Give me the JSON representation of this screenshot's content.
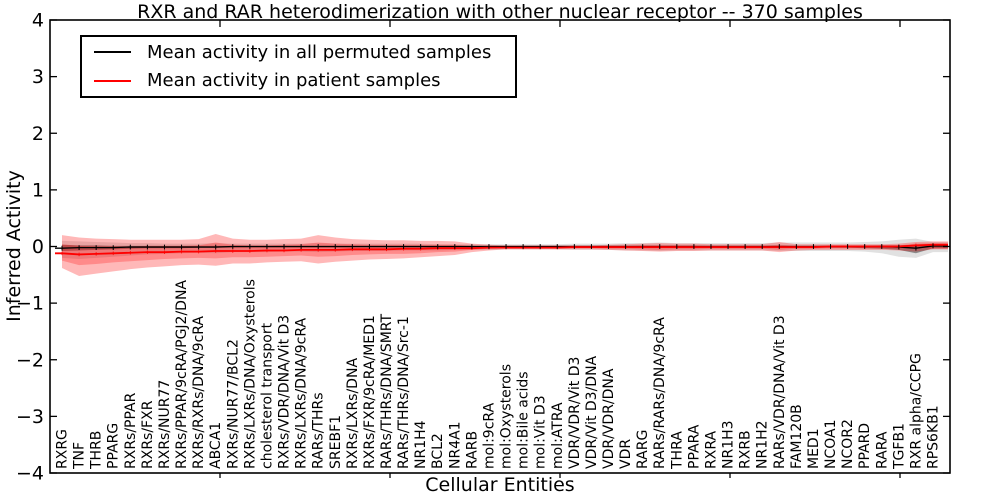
{
  "title": "RXR and RAR heterodimerization with other nuclear receptor -- 370 samples",
  "legend": {
    "items": [
      {
        "label": "Mean activity in all permuted samples",
        "color": "#000000"
      },
      {
        "label": "Mean activity in patient samples",
        "color": "#ff0000"
      }
    ]
  },
  "colors": {
    "patient_line": "#ff0000",
    "permuted_line": "#000000",
    "patient_band": "#ff0000",
    "permuted_band": "#777777",
    "frame": "#000000"
  },
  "chart_data": {
    "type": "line",
    "title": "RXR and RAR heterodimerization with other nuclear receptor -- 370 samples",
    "xlabel": "Cellular Entities",
    "ylabel": "Inferred Activity",
    "ylim": [
      -4,
      4
    ],
    "yticks": [
      4,
      3,
      2,
      1,
      0,
      -1,
      -2,
      -3,
      -4
    ],
    "grid": false,
    "legend_position": "upper left",
    "entities": [
      "RXRG",
      "TNF",
      "THRB",
      "PPARG",
      "RXRs/PPAR",
      "RXRs/FXR",
      "RXRs/NUR77",
      "RXRs/PPAR/9cRA/PGJ2/DNA",
      "RXRs/RXRs/DNA/9cRA",
      "ABCA1",
      "RXRs/NUR77/BCL2",
      "RXRs/LXRs/DNA/Oxysterols",
      "cholesterol transport",
      "RXRs/VDR/DNA/Vit D3",
      "RXRs/LXRs/DNA/9cRA",
      "RARs/THRs",
      "SREBF1",
      "RXRs/LXRs/DNA",
      "RXRs/FXR/9cRA/MED1",
      "RARs/THRs/DNA/SMRT",
      "RARs/THRs/DNA/Src-1",
      "NR1H4",
      "BCL2",
      "NR4A1",
      "RARB",
      "mol:9cRA",
      "mol:Oxysterols",
      "mol:Bile acids",
      "mol:Vit D3",
      "mol:ATRA",
      "VDR/VDR/Vit D3",
      "VDR/Vit D3/DNA",
      "VDR/VDR/DNA",
      "VDR",
      "RARG",
      "RARs/RARs/DNA/9cRA",
      "THRA",
      "PPARA",
      "RXRA",
      "NR1H3",
      "RXRB",
      "NR1H2",
      "RARs/VDR/DNA/Vit D3",
      "FAM120B",
      "MED1",
      "NCOA1",
      "NCOR2",
      "PPARD",
      "RARA",
      "TGFB1",
      "RXR alpha/CCPG",
      "RPS6KB1"
    ],
    "series": [
      {
        "name": "Mean activity in all permuted samples",
        "color": "#000000",
        "band_color": "#777777",
        "mean": [
          -0.03,
          -0.02,
          -0.02,
          -0.02,
          -0.01,
          -0.01,
          -0.01,
          -0.01,
          -0.01,
          -0.01,
          0.0,
          0.0,
          0.0,
          0.0,
          0.0,
          0.0,
          0.0,
          0.0,
          0.0,
          0.0,
          0.0,
          0.0,
          0.0,
          0.0,
          0.0,
          0.0,
          0.0,
          0.0,
          0.0,
          0.0,
          0.0,
          0.0,
          0.0,
          0.0,
          0.0,
          0.0,
          0.0,
          0.0,
          0.0,
          0.0,
          0.0,
          0.0,
          0.0,
          0.0,
          0.0,
          0.0,
          0.0,
          0.0,
          0.0,
          -0.01,
          -0.03,
          0.01
        ],
        "band_outer_upper": [
          0.1,
          0.09,
          0.08,
          0.07,
          0.06,
          0.06,
          0.05,
          0.05,
          0.05,
          0.06,
          0.05,
          0.05,
          0.05,
          0.05,
          0.05,
          0.06,
          0.05,
          0.05,
          0.05,
          0.05,
          0.05,
          0.05,
          0.04,
          0.04,
          0.04,
          0.04,
          0.04,
          0.04,
          0.04,
          0.04,
          0.05,
          0.05,
          0.05,
          0.06,
          0.06,
          0.07,
          0.06,
          0.06,
          0.06,
          0.06,
          0.06,
          0.06,
          0.07,
          0.07,
          0.07,
          0.07,
          0.07,
          0.08,
          0.09,
          0.12,
          0.14,
          0.08
        ],
        "band_outer_lower": [
          -0.2,
          -0.22,
          -0.2,
          -0.18,
          -0.16,
          -0.14,
          -0.13,
          -0.12,
          -0.11,
          -0.12,
          -0.1,
          -0.1,
          -0.1,
          -0.09,
          -0.09,
          -0.1,
          -0.09,
          -0.08,
          -0.08,
          -0.08,
          -0.07,
          -0.07,
          -0.07,
          -0.06,
          -0.06,
          -0.06,
          -0.05,
          -0.05,
          -0.05,
          -0.05,
          -0.06,
          -0.06,
          -0.06,
          -0.07,
          -0.07,
          -0.08,
          -0.07,
          -0.07,
          -0.07,
          -0.07,
          -0.07,
          -0.07,
          -0.08,
          -0.08,
          -0.08,
          -0.08,
          -0.08,
          -0.09,
          -0.12,
          -0.18,
          -0.2,
          -0.1
        ],
        "band_inner_upper": [
          0.03,
          0.02,
          0.02,
          0.01,
          0.01,
          0.01,
          0.01,
          0.01,
          0.01,
          0.01,
          0.01,
          0.01,
          0.01,
          0.01,
          0.01,
          0.01,
          0.01,
          0.01,
          0.01,
          0.01,
          0.01,
          0.01,
          0.01,
          0.01,
          0.01,
          0.01,
          0.01,
          0.01,
          0.01,
          0.01,
          0.01,
          0.01,
          0.01,
          0.01,
          0.01,
          0.01,
          0.01,
          0.01,
          0.01,
          0.01,
          0.01,
          0.01,
          0.01,
          0.01,
          0.01,
          0.01,
          0.01,
          0.01,
          0.02,
          0.02,
          0.03,
          0.02
        ],
        "band_inner_lower": [
          -0.08,
          -0.07,
          -0.06,
          -0.05,
          -0.04,
          -0.03,
          -0.03,
          -0.03,
          -0.02,
          -0.02,
          -0.02,
          -0.02,
          -0.02,
          -0.02,
          -0.02,
          -0.02,
          -0.02,
          -0.02,
          -0.02,
          -0.02,
          -0.02,
          -0.02,
          -0.02,
          -0.02,
          -0.02,
          -0.02,
          -0.02,
          -0.02,
          -0.02,
          -0.02,
          -0.02,
          -0.02,
          -0.02,
          -0.02,
          -0.02,
          -0.02,
          -0.02,
          -0.02,
          -0.02,
          -0.02,
          -0.02,
          -0.02,
          -0.02,
          -0.02,
          -0.02,
          -0.02,
          -0.02,
          -0.03,
          -0.04,
          -0.06,
          -0.12,
          -0.03
        ]
      },
      {
        "name": "Mean activity in patient samples",
        "color": "#ff0000",
        "band_color": "#ff0000",
        "mean": [
          -0.12,
          -0.14,
          -0.13,
          -0.12,
          -0.11,
          -0.1,
          -0.1,
          -0.09,
          -0.09,
          -0.08,
          -0.08,
          -0.08,
          -0.07,
          -0.07,
          -0.06,
          -0.06,
          -0.06,
          -0.05,
          -0.05,
          -0.05,
          -0.04,
          -0.04,
          -0.03,
          -0.03,
          -0.03,
          -0.02,
          -0.02,
          -0.02,
          -0.02,
          -0.02,
          -0.01,
          -0.01,
          -0.01,
          -0.01,
          -0.01,
          -0.01,
          -0.01,
          -0.01,
          -0.01,
          -0.01,
          -0.01,
          -0.01,
          -0.01,
          -0.01,
          -0.01,
          0.0,
          0.0,
          0.0,
          0.0,
          0.0,
          0.02,
          0.03
        ],
        "band_outer_upper": [
          0.2,
          0.16,
          0.14,
          0.13,
          0.12,
          0.12,
          0.12,
          0.12,
          0.13,
          0.22,
          0.14,
          0.12,
          0.12,
          0.13,
          0.14,
          0.2,
          0.16,
          0.13,
          0.12,
          0.11,
          0.11,
          0.1,
          0.1,
          0.09,
          0.05,
          0.03,
          0.02,
          0.02,
          0.02,
          0.02,
          0.02,
          0.02,
          0.03,
          0.04,
          0.05,
          0.06,
          0.05,
          0.05,
          0.04,
          0.04,
          0.04,
          0.04,
          0.08,
          0.04,
          0.04,
          0.04,
          0.04,
          0.04,
          0.04,
          0.05,
          0.08,
          0.09
        ],
        "band_outer_lower": [
          -0.38,
          -0.52,
          -0.48,
          -0.44,
          -0.4,
          -0.37,
          -0.35,
          -0.33,
          -0.32,
          -0.34,
          -0.3,
          -0.3,
          -0.28,
          -0.27,
          -0.26,
          -0.3,
          -0.27,
          -0.25,
          -0.23,
          -0.22,
          -0.21,
          -0.19,
          -0.17,
          -0.15,
          -0.1,
          -0.07,
          -0.05,
          -0.05,
          -0.05,
          -0.05,
          -0.05,
          -0.05,
          -0.06,
          -0.07,
          -0.08,
          -0.09,
          -0.08,
          -0.08,
          -0.07,
          -0.07,
          -0.07,
          -0.07,
          -0.1,
          -0.07,
          -0.06,
          -0.06,
          -0.06,
          -0.06,
          -0.06,
          -0.07,
          -0.09,
          -0.05
        ],
        "band_inner_upper": [
          0.04,
          0.01,
          0.0,
          0.0,
          0.0,
          0.01,
          0.01,
          0.01,
          0.02,
          0.07,
          0.03,
          0.02,
          0.02,
          0.03,
          0.04,
          0.07,
          0.05,
          0.04,
          0.03,
          0.03,
          0.03,
          0.03,
          0.03,
          0.03,
          0.01,
          0.0,
          0.0,
          0.0,
          0.0,
          0.0,
          0.0,
          0.0,
          0.01,
          0.01,
          0.02,
          0.02,
          0.02,
          0.02,
          0.01,
          0.01,
          0.01,
          0.01,
          0.03,
          0.01,
          0.01,
          0.02,
          0.02,
          0.02,
          0.02,
          0.02,
          0.05,
          0.06
        ],
        "band_inner_lower": [
          -0.25,
          -0.33,
          -0.31,
          -0.28,
          -0.26,
          -0.24,
          -0.22,
          -0.21,
          -0.2,
          -0.21,
          -0.19,
          -0.19,
          -0.18,
          -0.17,
          -0.16,
          -0.18,
          -0.17,
          -0.15,
          -0.14,
          -0.13,
          -0.13,
          -0.12,
          -0.1,
          -0.09,
          -0.06,
          -0.04,
          -0.03,
          -0.03,
          -0.03,
          -0.03,
          -0.03,
          -0.03,
          -0.04,
          -0.04,
          -0.05,
          -0.06,
          -0.05,
          -0.05,
          -0.04,
          -0.04,
          -0.04,
          -0.04,
          -0.06,
          -0.04,
          -0.04,
          -0.03,
          -0.03,
          -0.03,
          -0.03,
          -0.03,
          -0.02,
          -0.04
        ]
      }
    ]
  }
}
